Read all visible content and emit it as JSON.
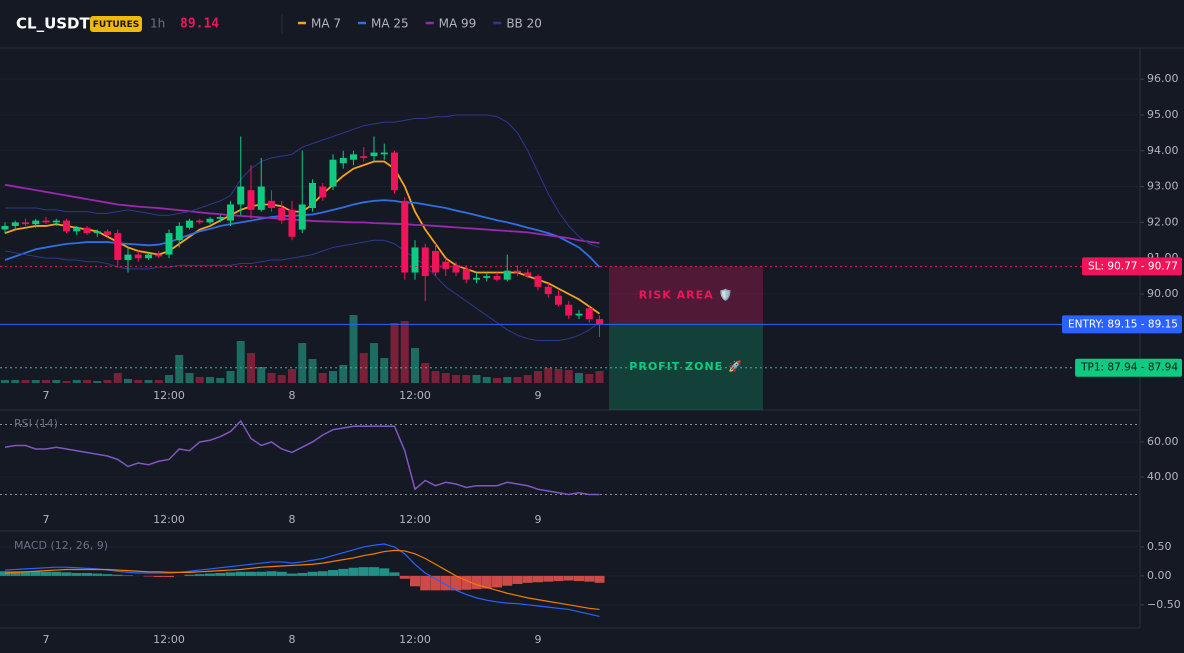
{
  "header": {
    "symbol": "CL_USDT",
    "badge": "FUTURES",
    "interval": "1h",
    "price": 89.14
  },
  "chart_data": [
    {
      "type": "candlestick",
      "categories": [
        null,
        null,
        null,
        null,
        "7",
        null,
        null,
        null,
        null,
        null,
        null,
        null,
        null,
        null,
        null,
        null,
        "12:00",
        null,
        null,
        null,
        null,
        null,
        null,
        null,
        null,
        null,
        null,
        null,
        "8",
        null,
        null,
        null,
        null,
        null,
        null,
        null,
        null,
        null,
        null,
        null,
        "12:00",
        null,
        null,
        null,
        null,
        null,
        null,
        null,
        null,
        null,
        null,
        null,
        "9",
        null,
        null,
        null,
        null,
        null,
        null
      ],
      "open": [
        91.8,
        91.9,
        92.0,
        91.95,
        92.05,
        92.0,
        92.05,
        91.75,
        91.85,
        91.7,
        91.75,
        91.7,
        90.95,
        91.1,
        91.0,
        91.1,
        91.1,
        91.5,
        91.85,
        92.05,
        92.0,
        92.1,
        92.05,
        92.5,
        92.9,
        92.35,
        92.6,
        92.4,
        92.35,
        91.8,
        92.4,
        93.0,
        93.0,
        93.65,
        93.75,
        93.85,
        93.85,
        93.9,
        93.95,
        92.6,
        90.6,
        91.3,
        91.2,
        90.9,
        90.8,
        90.7,
        90.4,
        90.45,
        90.5,
        90.4,
        90.65,
        90.6,
        90.5,
        90.2,
        89.95,
        89.7,
        89.4,
        89.6,
        89.3
      ],
      "high": [
        92.0,
        92.05,
        92.1,
        92.1,
        92.15,
        92.1,
        92.1,
        91.9,
        91.9,
        91.8,
        91.8,
        91.8,
        91.3,
        91.2,
        91.15,
        91.2,
        91.8,
        92.0,
        92.1,
        92.1,
        92.15,
        92.2,
        92.6,
        94.4,
        93.6,
        93.8,
        92.9,
        92.6,
        92.6,
        94.0,
        93.2,
        93.1,
        93.9,
        94.0,
        94.0,
        94.1,
        94.4,
        94.2,
        94.0,
        92.7,
        91.5,
        91.4,
        91.4,
        91.0,
        90.9,
        90.8,
        90.6,
        90.6,
        90.6,
        91.1,
        90.8,
        90.7,
        90.55,
        90.3,
        90.1,
        89.8,
        89.55,
        89.65,
        89.4
      ],
      "low": [
        91.7,
        91.8,
        91.9,
        91.85,
        91.95,
        91.9,
        91.7,
        91.65,
        91.65,
        91.6,
        91.6,
        90.75,
        90.6,
        90.9,
        90.95,
        91.0,
        91.0,
        91.3,
        91.8,
        91.95,
        91.95,
        92.0,
        91.9,
        92.2,
        92.1,
        92.3,
        92.3,
        91.95,
        91.5,
        91.7,
        92.3,
        92.6,
        92.9,
        93.5,
        93.6,
        93.7,
        93.7,
        93.75,
        92.8,
        90.4,
        90.4,
        89.8,
        90.5,
        90.5,
        90.5,
        90.3,
        90.3,
        90.35,
        90.35,
        90.35,
        90.5,
        90.45,
        90.1,
        89.9,
        89.65,
        89.3,
        89.3,
        89.2,
        88.8
      ],
      "close": [
        91.9,
        92.0,
        91.95,
        92.05,
        92.0,
        92.05,
        91.75,
        91.85,
        91.7,
        91.75,
        91.65,
        90.95,
        91.1,
        91.0,
        91.1,
        91.05,
        91.7,
        91.9,
        92.05,
        92.0,
        92.1,
        92.15,
        92.5,
        93.0,
        92.35,
        93.0,
        92.4,
        92.05,
        91.6,
        92.5,
        93.1,
        92.7,
        93.75,
        93.8,
        93.9,
        93.8,
        93.95,
        93.95,
        92.9,
        90.6,
        91.3,
        90.5,
        90.6,
        90.7,
        90.6,
        90.4,
        90.45,
        90.5,
        90.4,
        90.65,
        90.6,
        90.5,
        90.2,
        90.0,
        89.7,
        89.4,
        89.45,
        89.3,
        89.15
      ],
      "up_color": "#0ecb81",
      "down_color": "#f0145a",
      "volume": [
        3,
        3,
        3,
        3,
        3,
        3,
        2,
        3,
        3,
        2,
        3,
        10,
        4,
        3,
        3,
        3,
        8,
        28,
        10,
        6,
        6,
        5,
        12,
        42,
        30,
        16,
        10,
        8,
        14,
        40,
        24,
        10,
        12,
        18,
        68,
        30,
        40,
        25,
        60,
        62,
        35,
        20,
        12,
        10,
        8,
        8,
        8,
        6,
        5,
        6,
        6,
        8,
        12,
        15,
        14,
        13,
        10,
        9,
        12
      ],
      "volume_up_color": "#1d6b61",
      "volume_down_color": "#7a2038",
      "series": [
        {
          "name": "MA 7",
          "color": "#f7a21b",
          "values": [
            91.7,
            91.8,
            91.85,
            91.9,
            91.9,
            91.95,
            91.9,
            91.85,
            91.8,
            91.75,
            91.6,
            91.45,
            91.3,
            91.2,
            91.15,
            91.1,
            91.2,
            91.4,
            91.6,
            91.8,
            91.9,
            92.05,
            92.2,
            92.35,
            92.45,
            92.5,
            92.5,
            92.45,
            92.3,
            92.3,
            92.5,
            92.8,
            93.05,
            93.3,
            93.5,
            93.6,
            93.7,
            93.7,
            93.5,
            93.0,
            92.3,
            91.8,
            91.4,
            91.0,
            90.8,
            90.7,
            90.6,
            90.6,
            90.6,
            90.6,
            90.6,
            90.5,
            90.4,
            90.3,
            90.15,
            90.0,
            89.85,
            89.65,
            89.45
          ]
        },
        {
          "name": "MA 25",
          "color": "#2f6fe4",
          "values": [
            90.95,
            91.05,
            91.15,
            91.25,
            91.3,
            91.35,
            91.4,
            91.42,
            91.45,
            91.45,
            91.45,
            91.42,
            91.4,
            91.38,
            91.36,
            91.38,
            91.45,
            91.55,
            91.65,
            91.75,
            91.82,
            91.9,
            91.95,
            92.0,
            92.05,
            92.1,
            92.15,
            92.18,
            92.18,
            92.2,
            92.22,
            92.28,
            92.35,
            92.42,
            92.5,
            92.56,
            92.6,
            92.62,
            92.6,
            92.55,
            92.55,
            92.5,
            92.45,
            92.4,
            92.33,
            92.27,
            92.2,
            92.13,
            92.06,
            92.0,
            91.93,
            91.85,
            91.78,
            91.7,
            91.6,
            91.45,
            91.3,
            91.05,
            90.75
          ]
        },
        {
          "name": "MA 99",
          "color": "#9c27b0",
          "values": [
            93.05,
            93.0,
            92.95,
            92.9,
            92.85,
            92.8,
            92.75,
            92.7,
            92.65,
            92.6,
            92.55,
            92.5,
            92.47,
            92.44,
            92.42,
            92.4,
            92.37,
            92.34,
            92.31,
            92.28,
            92.25,
            92.23,
            92.2,
            92.18,
            92.16,
            92.14,
            92.12,
            92.1,
            92.08,
            92.06,
            92.04,
            92.03,
            92.02,
            92.01,
            92.0,
            92.0,
            91.98,
            91.97,
            91.96,
            91.95,
            91.93,
            91.92,
            91.9,
            91.88,
            91.86,
            91.84,
            91.82,
            91.8,
            91.78,
            91.76,
            91.74,
            91.72,
            91.68,
            91.64,
            91.6,
            91.56,
            91.5,
            91.46,
            91.42
          ]
        },
        {
          "name": "BB 20",
          "color": "#2b3a8c",
          "values": [
            92.4,
            92.4,
            92.4,
            92.4,
            92.35,
            92.35,
            92.3,
            92.3,
            92.3,
            92.25,
            92.25,
            92.3,
            92.35,
            92.3,
            92.25,
            92.2,
            92.2,
            92.25,
            92.3,
            92.4,
            92.5,
            92.6,
            92.75,
            93.2,
            93.5,
            93.7,
            93.8,
            93.85,
            93.9,
            94.1,
            94.2,
            94.3,
            94.4,
            94.5,
            94.6,
            94.7,
            94.75,
            94.8,
            94.8,
            94.85,
            94.9,
            94.9,
            94.95,
            94.95,
            95.0,
            95.0,
            95.0,
            95.0,
            94.95,
            94.8,
            94.5,
            94.0,
            93.4,
            92.8,
            92.3,
            91.9,
            91.6,
            91.4,
            91.3
          ],
          "lower": [
            91.2,
            91.15,
            91.1,
            91.05,
            91.0,
            91.0,
            90.95,
            90.95,
            90.9,
            90.9,
            90.85,
            90.75,
            90.7,
            90.7,
            90.7,
            90.75,
            90.75,
            90.8,
            90.8,
            90.8,
            90.8,
            90.8,
            90.8,
            90.85,
            90.85,
            90.9,
            90.95,
            90.95,
            91.0,
            91.05,
            91.1,
            91.2,
            91.3,
            91.35,
            91.4,
            91.45,
            91.5,
            91.5,
            91.4,
            91.2,
            91.0,
            90.8,
            90.5,
            90.2,
            90.0,
            89.8,
            89.6,
            89.4,
            89.2,
            89.0,
            88.85,
            88.75,
            88.7,
            88.7,
            88.7,
            88.75,
            88.85,
            89.0,
            89.2
          ]
        }
      ],
      "ylim": [
        86.76,
        96.87
      ],
      "yticks": [
        {
          "value": 90,
          "label": "90.00"
        },
        {
          "value": 91,
          "label": "91.00"
        },
        {
          "value": 92,
          "label": "92.00"
        },
        {
          "value": 93,
          "label": "93.00"
        },
        {
          "value": 94,
          "label": "94.00"
        },
        {
          "value": 95,
          "label": "95.00"
        },
        {
          "value": 96,
          "label": "96.00"
        }
      ],
      "levels": [
        {
          "label": "SL: 90.77 - 90.77",
          "value": 90.77,
          "color": "#f0145a",
          "text_color": "#ffffff",
          "style": "dotted"
        },
        {
          "label": "ENTRY: 89.15 - 89.15",
          "value": 89.15,
          "color": "#2962ff",
          "text_color": "#ffffff",
          "style": "solid"
        },
        {
          "label": "TP1: 87.94 - 87.94",
          "value": 87.94,
          "color": "#0ecb81",
          "text_color": "#0b1a14",
          "style": "dotted"
        }
      ],
      "risk_zone_label": "RISK AREA 🛡️",
      "profit_zone_label": "PROFIT ZONE 🚀"
    },
    {
      "type": "line",
      "title": "RSI (14)",
      "color": "#7e57c2",
      "values": [
        57,
        58,
        58,
        56,
        56,
        57,
        56,
        55,
        54,
        53,
        52,
        50,
        46,
        48,
        47,
        49,
        50,
        56,
        55,
        60,
        61,
        63,
        66,
        72,
        62,
        58,
        60,
        56,
        54,
        57,
        60,
        64,
        67,
        68,
        69,
        69,
        69,
        69,
        69,
        55,
        33,
        38,
        35,
        37,
        36,
        34,
        35,
        35,
        35,
        37,
        36,
        35,
        33,
        32,
        31,
        30,
        31,
        30,
        30
      ],
      "ylim": [
        9.7,
        77.7
      ],
      "yticks": [
        {
          "value": 60,
          "label": "60.00"
        },
        {
          "value": 40,
          "label": "40.00"
        }
      ],
      "levels": [
        70,
        30
      ]
    },
    {
      "type": "macd",
      "title": "MACD (12, 26, 9)",
      "series": [
        {
          "color": "#2962ff",
          "values": [
            0.1,
            0.11,
            0.12,
            0.13,
            0.14,
            0.15,
            0.15,
            0.14,
            0.13,
            0.12,
            0.1,
            0.08,
            0.06,
            0.05,
            0.05,
            0.05,
            0.05,
            0.06,
            0.08,
            0.1,
            0.12,
            0.14,
            0.16,
            0.18,
            0.2,
            0.22,
            0.24,
            0.24,
            0.22,
            0.24,
            0.27,
            0.3,
            0.35,
            0.4,
            0.45,
            0.5,
            0.53,
            0.55,
            0.5,
            0.38,
            0.2,
            0.05,
            -0.05,
            -0.15,
            -0.25,
            -0.32,
            -0.38,
            -0.42,
            -0.45,
            -0.47,
            -0.48,
            -0.5,
            -0.52,
            -0.54,
            -0.56,
            -0.58,
            -0.62,
            -0.66,
            -0.7
          ]
        },
        {
          "color": "#f57c00",
          "values": [
            0.05,
            0.06,
            0.07,
            0.08,
            0.09,
            0.1,
            0.11,
            0.11,
            0.11,
            0.11,
            0.11,
            0.1,
            0.09,
            0.08,
            0.07,
            0.07,
            0.06,
            0.06,
            0.06,
            0.07,
            0.08,
            0.09,
            0.1,
            0.11,
            0.13,
            0.15,
            0.16,
            0.17,
            0.18,
            0.19,
            0.2,
            0.22,
            0.25,
            0.28,
            0.31,
            0.35,
            0.38,
            0.42,
            0.44,
            0.43,
            0.38,
            0.3,
            0.2,
            0.1,
            0.0,
            -0.08,
            -0.15,
            -0.2,
            -0.25,
            -0.3,
            -0.34,
            -0.38,
            -0.41,
            -0.44,
            -0.47,
            -0.5,
            -0.53,
            -0.56,
            -0.58
          ]
        }
      ],
      "histogram": {
        "up_color": "#26a69a",
        "down_color": "#ef5350",
        "values": [
          0.08,
          0.08,
          0.08,
          0.08,
          0.07,
          0.07,
          0.06,
          0.05,
          0.05,
          0.04,
          0.03,
          0.02,
          0.01,
          0.0,
          -0.01,
          -0.02,
          -0.02,
          0.0,
          0.02,
          0.03,
          0.04,
          0.05,
          0.06,
          0.07,
          0.07,
          0.07,
          0.08,
          0.07,
          0.04,
          0.05,
          0.07,
          0.08,
          0.1,
          0.12,
          0.14,
          0.15,
          0.15,
          0.13,
          0.06,
          -0.05,
          -0.18,
          -0.25,
          -0.25,
          -0.25,
          -0.25,
          -0.24,
          -0.23,
          -0.22,
          -0.2,
          -0.17,
          -0.14,
          -0.12,
          -0.11,
          -0.1,
          -0.09,
          -0.08,
          -0.09,
          -0.1,
          -0.12
        ]
      },
      "ylim": [
        -0.9,
        0.74
      ],
      "yticks": [
        {
          "value": 0.5,
          "label": "0.50"
        },
        {
          "value": 0,
          "label": "0.00"
        },
        {
          "value": -0.5,
          "label": "−0.50"
        }
      ]
    }
  ]
}
